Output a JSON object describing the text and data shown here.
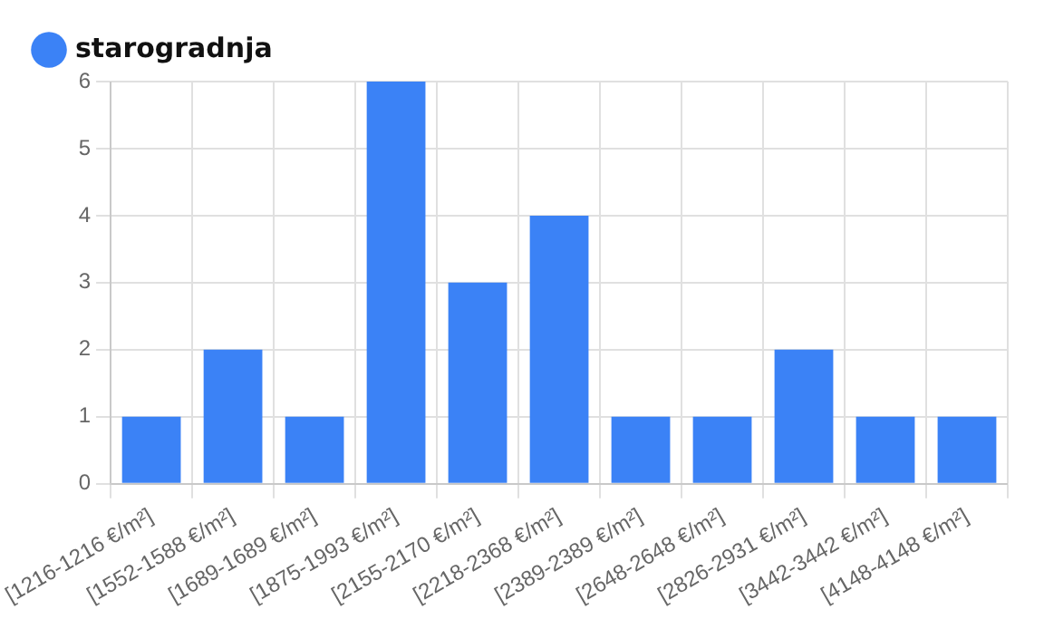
{
  "chart_data": {
    "type": "bar",
    "categories": [
      "[1216-1216 €/m²]",
      "[1552-1588 €/m²]",
      "[1689-1689 €/m²]",
      "[1875-1993 €/m²]",
      "[2155-2170 €/m²]",
      "[2218-2368 €/m²]",
      "[2389-2389 €/m²]",
      "[2648-2648 €/m²]",
      "[2826-2931 €/m²]",
      "[3442-3442 €/m²]",
      "[4148-4148 €/m²]"
    ],
    "series": [
      {
        "name": "starogradnja",
        "color": "#3b82f6",
        "values": [
          1,
          2,
          1,
          6,
          3,
          4,
          1,
          1,
          2,
          1,
          1
        ]
      }
    ],
    "ylim": [
      0,
      6
    ],
    "yticks": [
      0,
      1,
      2,
      3,
      4,
      5,
      6
    ],
    "grid": true,
    "legend": "top left"
  }
}
